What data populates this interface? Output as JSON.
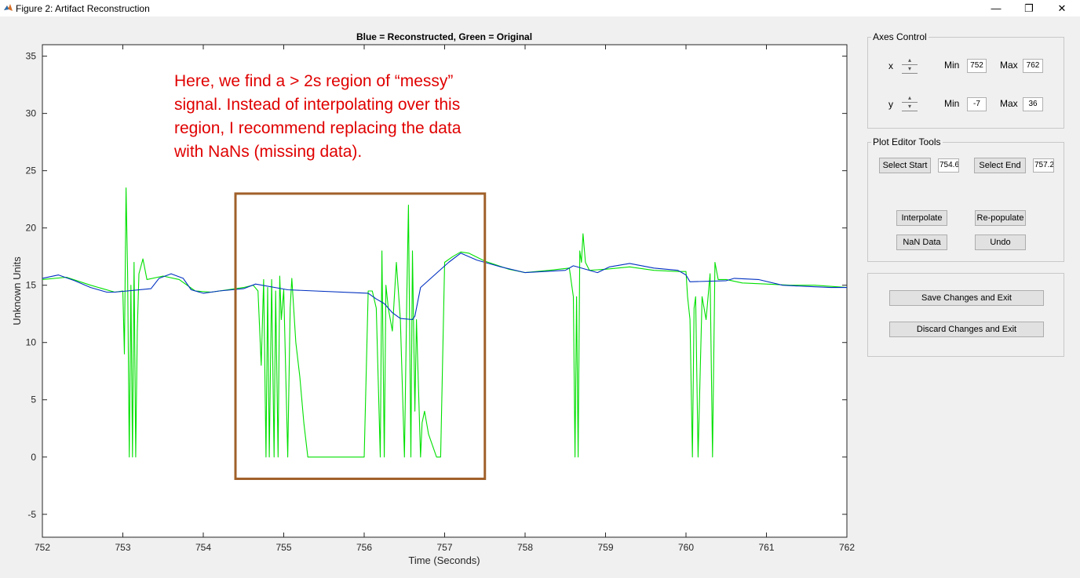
{
  "window": {
    "title": "Figure 2: Artifact Reconstruction",
    "minimize_glyph": "—",
    "restore_glyph": "❐",
    "close_glyph": "✕"
  },
  "annotation": {
    "lines": [
      "Here, we find a > 2s region of “messy”",
      "signal. Instead of interpolating over this",
      "region, I recommend replacing the data",
      "with NaNs (missing data)."
    ],
    "text_color": "#e00000",
    "box_color": "#a0602a",
    "box_x_range": [
      754.4,
      757.5
    ],
    "box_y_range": [
      -1.9,
      23.0
    ]
  },
  "axes_control": {
    "title": "Axes Control",
    "x_label": "x",
    "y_label": "y",
    "min_label": "Min",
    "max_label": "Max",
    "x_min": "752",
    "x_max": "762",
    "y_min": "-7",
    "y_max": "36"
  },
  "plot_editor": {
    "title": "Plot Editor Tools",
    "select_start_label": "Select Start",
    "select_start_value": "754.6",
    "select_end_label": "Select End",
    "select_end_value": "757.24",
    "interpolate_label": "Interpolate",
    "repopulate_label": "Re-populate",
    "nan_data_label": "NaN Data",
    "undo_label": "Undo"
  },
  "actions": {
    "save_label": "Save Changes and Exit",
    "discard_label": "Discard Changes and Exit"
  },
  "chart_data": {
    "type": "line",
    "title": "Blue = Reconstructed, Green = Original",
    "xlabel": "Time (Seconds)",
    "ylabel": "Unknown Units",
    "xlim": [
      752,
      762
    ],
    "ylim": [
      -7,
      36
    ],
    "xticks": [
      "752",
      "753",
      "754",
      "755",
      "756",
      "757",
      "758",
      "759",
      "760",
      "761",
      "762"
    ],
    "yticks": [
      "-5",
      "0",
      "5",
      "10",
      "15",
      "20",
      "25",
      "30",
      "35"
    ],
    "grid": false,
    "series": [
      {
        "color": "#00e000",
        "x": [
          752,
          752.3,
          752.6,
          752.9,
          753.0,
          753.02,
          753.04,
          753.06,
          753.08,
          753.1,
          753.12,
          753.14,
          753.16,
          753.18,
          753.2,
          753.25,
          753.3,
          753.5,
          753.7,
          753.9,
          754.1,
          754.3,
          754.5,
          754.62,
          754.68,
          754.72,
          754.75,
          754.78,
          754.8,
          754.82,
          754.85,
          754.88,
          754.9,
          754.93,
          754.95,
          754.97,
          755.0,
          755.05,
          755.08,
          755.1,
          755.15,
          755.2,
          755.25,
          755.3,
          755.4,
          755.6,
          755.8,
          756.0,
          756.05,
          756.1,
          756.15,
          756.2,
          756.22,
          756.25,
          756.27,
          756.3,
          756.35,
          756.4,
          756.45,
          756.5,
          756.53,
          756.55,
          756.58,
          756.6,
          756.63,
          756.65,
          756.7,
          756.72,
          756.75,
          756.8,
          756.9,
          756.95,
          757.0,
          757.1,
          757.2,
          757.3,
          757.5,
          757.8,
          758.0,
          758.3,
          758.55,
          758.6,
          758.62,
          758.64,
          758.66,
          758.68,
          758.7,
          758.72,
          758.75,
          758.8,
          759.0,
          759.3,
          759.6,
          759.9,
          760.0,
          760.02,
          760.05,
          760.08,
          760.1,
          760.12,
          760.15,
          760.2,
          760.25,
          760.3,
          760.33,
          760.36,
          760.4,
          760.5,
          760.7,
          761.0,
          761.3,
          761.6,
          762
        ],
        "y": [
          15.5,
          15.7,
          15.0,
          14.4,
          14.5,
          9.0,
          23.5,
          16,
          0,
          15,
          0,
          17,
          0,
          11,
          16,
          17.3,
          15.5,
          15.8,
          15.5,
          14.5,
          14.4,
          14.6,
          14.8,
          15.0,
          14.5,
          8.0,
          15.5,
          0,
          14.8,
          0,
          15.5,
          0,
          14.5,
          0,
          15.8,
          12,
          14.6,
          0,
          13,
          15.6,
          10,
          7,
          3,
          0,
          0,
          0,
          0,
          0,
          14.5,
          14.5,
          13,
          0,
          18,
          0,
          15,
          13,
          11,
          17,
          12,
          0,
          14,
          22,
          0,
          18,
          4,
          12,
          0,
          3,
          4,
          2,
          0,
          0,
          17,
          17.5,
          17.9,
          17.8,
          17.1,
          16.4,
          16.1,
          16.3,
          16.5,
          14,
          0,
          14,
          0,
          18,
          17,
          19.5,
          17,
          16.3,
          16.4,
          16.6,
          16.3,
          16.2,
          16.2,
          14,
          12,
          0,
          13,
          14,
          0,
          14,
          12,
          16,
          0,
          17,
          15.5,
          15.5,
          15.2,
          15.1,
          15.0,
          15.0,
          14.8
        ]
      },
      {
        "color": "#0030c0",
        "x": [
          752,
          752.2,
          752.4,
          752.6,
          752.8,
          752.9,
          753.35,
          753.45,
          753.6,
          753.75,
          753.85,
          754.0,
          754.2,
          754.5,
          754.65,
          755.05,
          756.05,
          756.15,
          756.25,
          756.35,
          756.45,
          756.6,
          756.63,
          756.7,
          757.05,
          757.2,
          757.4,
          757.7,
          758.0,
          758.5,
          758.6,
          758.9,
          759.05,
          759.3,
          759.6,
          759.9,
          760.0,
          760.05,
          760.5,
          760.6,
          760.9,
          761.2,
          761.5,
          761.8,
          762
        ],
        "y": [
          15.6,
          15.9,
          15.4,
          14.8,
          14.4,
          14.4,
          14.7,
          15.6,
          16.0,
          15.6,
          14.6,
          14.3,
          14.5,
          14.7,
          15.1,
          14.6,
          14.3,
          13.8,
          13.4,
          12.6,
          12.1,
          12.0,
          12.3,
          14.8,
          17.0,
          17.8,
          17.2,
          16.6,
          16.1,
          16.3,
          16.7,
          16.1,
          16.6,
          16.9,
          16.5,
          16.3,
          15.9,
          15.3,
          15.4,
          15.6,
          15.5,
          15.0,
          14.9,
          14.8,
          14.8
        ]
      }
    ]
  }
}
